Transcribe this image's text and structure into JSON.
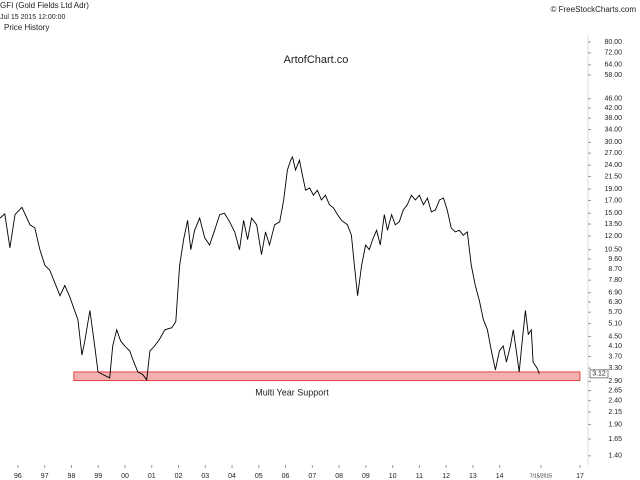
{
  "chart_data": {
    "type": "line",
    "title": "GFI (Gold Fields Ltd Adr)",
    "subtitle": "Jul 15 2015 12:00:00",
    "label": "Price History",
    "watermark": "ArtofChart.co",
    "credit": "© FreeStockCharts.com",
    "log_y": true,
    "color": "#000000",
    "x": [
      1995.33,
      1995.51,
      1995.7,
      1995.89,
      1996.15,
      1996.45,
      1996.63,
      1996.82,
      1997.01,
      1997.19,
      1997.57,
      1997.75,
      1997.94,
      1998.24,
      1998.39,
      1998.5,
      1998.69,
      1998.87,
      1998.99,
      1999.17,
      1999.43,
      1999.54,
      1999.69,
      1999.84,
      1999.99,
      2000.18,
      2000.29,
      2000.48,
      2000.66,
      2000.81,
      2000.93,
      2001.11,
      2001.3,
      2001.49,
      2001.75,
      2001.9,
      2002.04,
      2002.19,
      2002.34,
      2002.46,
      2002.6,
      2002.79,
      2002.98,
      2003.16,
      2003.35,
      2003.54,
      2003.72,
      2003.91,
      2004.1,
      2004.28,
      2004.43,
      2004.58,
      2004.73,
      2004.92,
      2005.1,
      2005.25,
      2005.4,
      2005.59,
      2005.78,
      2005.93,
      2006.07,
      2006.19,
      2006.26,
      2006.37,
      2006.52,
      2006.63,
      2006.75,
      2006.9,
      2007.04,
      2007.19,
      2007.34,
      2007.49,
      2007.64,
      2007.79,
      2007.94,
      2008.09,
      2008.31,
      2008.46,
      2008.57,
      2008.69,
      2008.84,
      2008.99,
      2009.13,
      2009.25,
      2009.4,
      2009.54,
      2009.69,
      2009.81,
      2009.96,
      2010.1,
      2010.25,
      2010.4,
      2010.55,
      2010.7,
      2010.85,
      2011.0,
      2011.15,
      2011.3,
      2011.45,
      2011.6,
      2011.75,
      2011.9,
      2012.04,
      2012.19,
      2012.34,
      2012.49,
      2012.64,
      2012.79,
      2012.94,
      2013.09,
      2013.24,
      2013.39,
      2013.54,
      2013.69,
      2013.84,
      2013.99,
      2014.13,
      2014.25,
      2014.4,
      2014.51,
      2014.62,
      2014.73,
      2014.84,
      2014.96,
      2015.07,
      2015.18,
      2015.25,
      2015.4,
      2015.48
    ],
    "values": [
      14.3,
      14.9,
      10.7,
      14.8,
      15.9,
      13.4,
      13.0,
      10.5,
      9.0,
      8.6,
      6.7,
      7.4,
      6.6,
      5.3,
      3.75,
      4.3,
      5.8,
      4.1,
      3.18,
      3.1,
      3.0,
      4.1,
      4.8,
      4.3,
      4.1,
      3.9,
      3.6,
      3.18,
      3.1,
      2.94,
      3.9,
      4.1,
      4.4,
      4.8,
      4.9,
      5.2,
      9.0,
      11.6,
      14.0,
      10.5,
      12.7,
      14.3,
      11.8,
      11.0,
      12.7,
      14.8,
      15.0,
      13.8,
      12.5,
      10.5,
      14.0,
      11.6,
      14.3,
      13.4,
      10.0,
      12.5,
      11.0,
      13.4,
      13.8,
      17.1,
      22.9,
      25.2,
      26.0,
      22.9,
      25.2,
      21.8,
      18.8,
      19.2,
      17.9,
      18.8,
      17.1,
      17.9,
      16.3,
      15.8,
      14.8,
      14.0,
      13.4,
      12.1,
      9.0,
      6.7,
      9.0,
      11.0,
      10.5,
      11.6,
      12.7,
      11.0,
      14.8,
      12.7,
      14.8,
      13.4,
      13.8,
      15.5,
      16.3,
      17.9,
      17.1,
      17.9,
      16.3,
      17.4,
      15.2,
      15.5,
      17.1,
      17.4,
      15.5,
      13.0,
      12.5,
      12.7,
      12.1,
      12.5,
      9.0,
      7.4,
      6.4,
      5.3,
      4.8,
      3.9,
      3.24,
      3.9,
      4.1,
      3.5,
      4.1,
      4.8,
      3.9,
      3.18,
      4.3,
      5.8,
      4.6,
      4.8,
      3.5,
      3.3,
      3.12
    ],
    "last_value": 3.12,
    "annotation": {
      "text": "Multi Year Support",
      "y_range": [
        2.92,
        3.18
      ],
      "x_range": [
        1998.09,
        2017.0
      ],
      "color": "#f4b0b0"
    },
    "xlim": [
      1995.33,
      2017.3
    ],
    "ylim": [
      1.28,
      85.7
    ],
    "xticks": [
      {
        "value": 1996,
        "label": "96"
      },
      {
        "value": 1997,
        "label": "97"
      },
      {
        "value": 1998,
        "label": "98"
      },
      {
        "value": 1999,
        "label": "99"
      },
      {
        "value": 2000,
        "label": "00"
      },
      {
        "value": 2001,
        "label": "01"
      },
      {
        "value": 2002,
        "label": "02"
      },
      {
        "value": 2003,
        "label": "03"
      },
      {
        "value": 2004,
        "label": "04"
      },
      {
        "value": 2005,
        "label": "05"
      },
      {
        "value": 2006,
        "label": "06"
      },
      {
        "value": 2007,
        "label": "07"
      },
      {
        "value": 2008,
        "label": "08"
      },
      {
        "value": 2009,
        "label": "09"
      },
      {
        "value": 2010,
        "label": "10"
      },
      {
        "value": 2011,
        "label": "11"
      },
      {
        "value": 2012,
        "label": "12"
      },
      {
        "value": 2013,
        "label": "13"
      },
      {
        "value": 2014,
        "label": "14"
      },
      {
        "value": 2015.54,
        "label": "7/15/2015"
      },
      {
        "value": 2017,
        "label": "17"
      }
    ],
    "yticks": [
      {
        "value": 80,
        "label": "80.00"
      },
      {
        "value": 72,
        "label": "72.00"
      },
      {
        "value": 64,
        "label": "64.00"
      },
      {
        "value": 58,
        "label": "58.00"
      },
      {
        "value": 46,
        "label": "46.00"
      },
      {
        "value": 42,
        "label": "42.00"
      },
      {
        "value": 38,
        "label": "38.00"
      },
      {
        "value": 34,
        "label": "34.00"
      },
      {
        "value": 30,
        "label": "30.00"
      },
      {
        "value": 27,
        "label": "27.00"
      },
      {
        "value": 24,
        "label": "24.00"
      },
      {
        "value": 21.5,
        "label": "21.50"
      },
      {
        "value": 19,
        "label": "19.00"
      },
      {
        "value": 17,
        "label": "17.00"
      },
      {
        "value": 15,
        "label": "15.00"
      },
      {
        "value": 13.5,
        "label": "13.50"
      },
      {
        "value": 12,
        "label": "12.00"
      },
      {
        "value": 10.5,
        "label": "10.50"
      },
      {
        "value": 9.6,
        "label": "9.60"
      },
      {
        "value": 8.7,
        "label": "8.70"
      },
      {
        "value": 7.8,
        "label": "7.80"
      },
      {
        "value": 6.9,
        "label": "6.90"
      },
      {
        "value": 6.3,
        "label": "6.30"
      },
      {
        "value": 5.7,
        "label": "5.70"
      },
      {
        "value": 5.1,
        "label": "5.10"
      },
      {
        "value": 4.5,
        "label": "4.50"
      },
      {
        "value": 4.1,
        "label": "4.10"
      },
      {
        "value": 3.7,
        "label": "3.70"
      },
      {
        "value": 3.3,
        "label": "3.30"
      },
      {
        "value": 2.9,
        "label": "2.90"
      },
      {
        "value": 2.65,
        "label": "2.65"
      },
      {
        "value": 2.4,
        "label": "2.40"
      },
      {
        "value": 2.15,
        "label": "2.15"
      },
      {
        "value": 1.9,
        "label": "1.90"
      },
      {
        "value": 1.65,
        "label": "1.65"
      },
      {
        "value": 1.4,
        "label": "1.40"
      }
    ]
  }
}
